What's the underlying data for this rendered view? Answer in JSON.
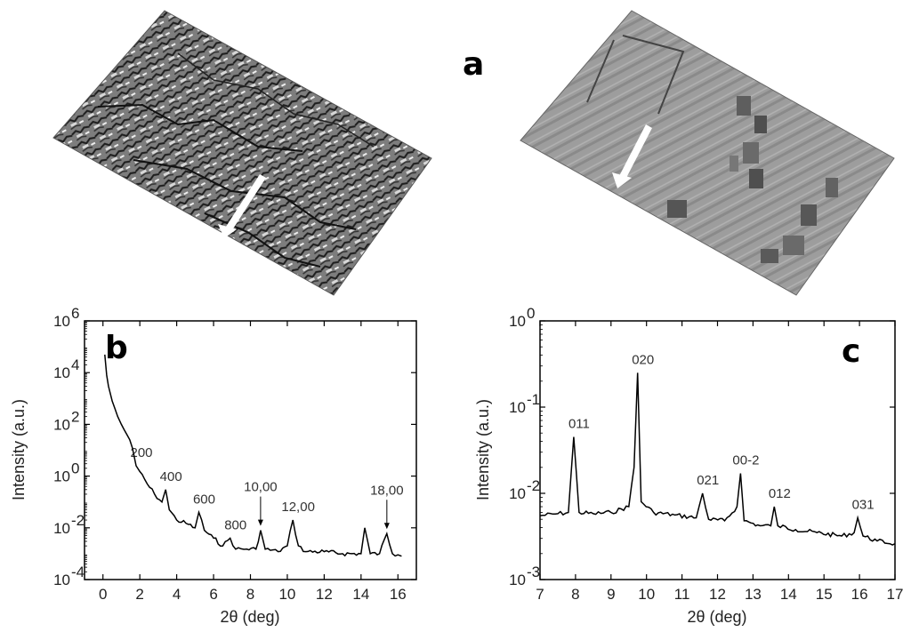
{
  "panel_labels": {
    "a": "a",
    "b": "b",
    "c": "c"
  },
  "chart_data": [
    {
      "id": "b",
      "type": "line",
      "title": "",
      "xlabel": "2θ (deg)",
      "ylabel": "Intensity (a.u.)",
      "y_scale": "log",
      "xlim": [
        -1,
        17
      ],
      "ylim": [
        0.0001,
        1000000
      ],
      "x_ticks": [
        "0",
        "2",
        "4",
        "6",
        "8",
        "10",
        "12",
        "14",
        "16"
      ],
      "y_ticks": [
        {
          "base": "10",
          "exp": "-4",
          "value": 0.0001
        },
        {
          "base": "10",
          "exp": "-2",
          "value": 0.01
        },
        {
          "base": "10",
          "exp": "0",
          "value": 1
        },
        {
          "base": "10",
          "exp": "2",
          "value": 100
        },
        {
          "base": "10",
          "exp": "4",
          "value": 10000
        },
        {
          "base": "10",
          "exp": "6",
          "value": 1000000
        }
      ],
      "series": [
        {
          "x": [
            0.1,
            0.2,
            0.3,
            0.5,
            0.8,
            1.0,
            1.3,
            1.6,
            1.8,
            2.0,
            2.4,
            2.8,
            3.2,
            3.4,
            3.6,
            4.0,
            4.5,
            5.0,
            5.2,
            5.5,
            6.0,
            6.5,
            6.9,
            7.2,
            7.8,
            8.3,
            8.55,
            8.8,
            9.5,
            10.0,
            10.3,
            10.6,
            11.0,
            12.0,
            13.0,
            14.0,
            14.2,
            14.5,
            15.0,
            15.4,
            15.7,
            16.0,
            16.2
          ],
          "y": [
            50000,
            8000,
            3000,
            800,
            200,
            100,
            40,
            12,
            2.5,
            1.5,
            0.5,
            0.2,
            0.1,
            0.3,
            0.05,
            0.02,
            0.015,
            0.01,
            0.04,
            0.008,
            0.004,
            0.002,
            0.004,
            0.0015,
            0.0015,
            0.0015,
            0.008,
            0.0015,
            0.0012,
            0.002,
            0.02,
            0.002,
            0.0012,
            0.0012,
            0.001,
            0.001,
            0.01,
            0.001,
            0.001,
            0.006,
            0.001,
            0.0009,
            0.0008
          ]
        }
      ],
      "peaks": [
        {
          "label": "200",
          "x": 1.8,
          "y": 2.5,
          "arrow": false
        },
        {
          "label": "400",
          "x": 3.4,
          "y": 0.3,
          "arrow": false
        },
        {
          "label": "600",
          "x": 5.2,
          "y": 0.04,
          "arrow": false
        },
        {
          "label": "800",
          "x": 6.9,
          "y": 0.004,
          "arrow": false
        },
        {
          "label": "10,00",
          "x": 8.55,
          "y": 0.008,
          "arrow": true
        },
        {
          "label": "12,00",
          "x": 10.3,
          "y": 0.02,
          "arrow": false
        },
        {
          "label": "18,00",
          "x": 15.4,
          "y": 0.006,
          "arrow": true
        }
      ]
    },
    {
      "id": "c",
      "type": "line",
      "title": "",
      "xlabel": "2θ (deg)",
      "ylabel": "Intensity (a.u.)",
      "y_scale": "log",
      "xlim": [
        7,
        17
      ],
      "ylim": [
        0.001,
        1
      ],
      "x_ticks": [
        "7",
        "8",
        "9",
        "10",
        "11",
        "12",
        "13",
        "14",
        "15",
        "16",
        "17"
      ],
      "y_ticks": [
        {
          "base": "10",
          "exp": "-3",
          "value": 0.001
        },
        {
          "base": "10",
          "exp": "-2",
          "value": 0.01
        },
        {
          "base": "10",
          "exp": "-1",
          "value": 0.1
        },
        {
          "base": "10",
          "exp": "0",
          "value": 1
        }
      ],
      "series": [
        {
          "x": [
            7.0,
            7.5,
            7.8,
            7.95,
            8.1,
            8.5,
            9.0,
            9.5,
            9.65,
            9.75,
            9.85,
            10.2,
            10.8,
            11.4,
            11.58,
            11.75,
            12.2,
            12.55,
            12.65,
            12.75,
            13.2,
            13.5,
            13.6,
            13.7,
            14.2,
            14.8,
            15.5,
            15.85,
            15.95,
            16.1,
            16.5,
            17.0
          ],
          "y": [
            0.0055,
            0.0058,
            0.006,
            0.045,
            0.006,
            0.0058,
            0.006,
            0.007,
            0.02,
            0.25,
            0.008,
            0.006,
            0.0056,
            0.0052,
            0.01,
            0.005,
            0.0048,
            0.007,
            0.017,
            0.0048,
            0.0042,
            0.0042,
            0.007,
            0.0042,
            0.0038,
            0.0035,
            0.0032,
            0.0035,
            0.0052,
            0.0032,
            0.0028,
            0.0026
          ]
        }
      ],
      "peaks": [
        {
          "label": "011",
          "x": 7.95,
          "y": 0.045
        },
        {
          "label": "020",
          "x": 9.75,
          "y": 0.25
        },
        {
          "label": "021",
          "x": 11.58,
          "y": 0.01
        },
        {
          "label": "00-2",
          "x": 12.65,
          "y": 0.017
        },
        {
          "label": "012",
          "x": 13.6,
          "y": 0.007
        },
        {
          "label": "031",
          "x": 15.95,
          "y": 0.0052
        }
      ]
    }
  ]
}
